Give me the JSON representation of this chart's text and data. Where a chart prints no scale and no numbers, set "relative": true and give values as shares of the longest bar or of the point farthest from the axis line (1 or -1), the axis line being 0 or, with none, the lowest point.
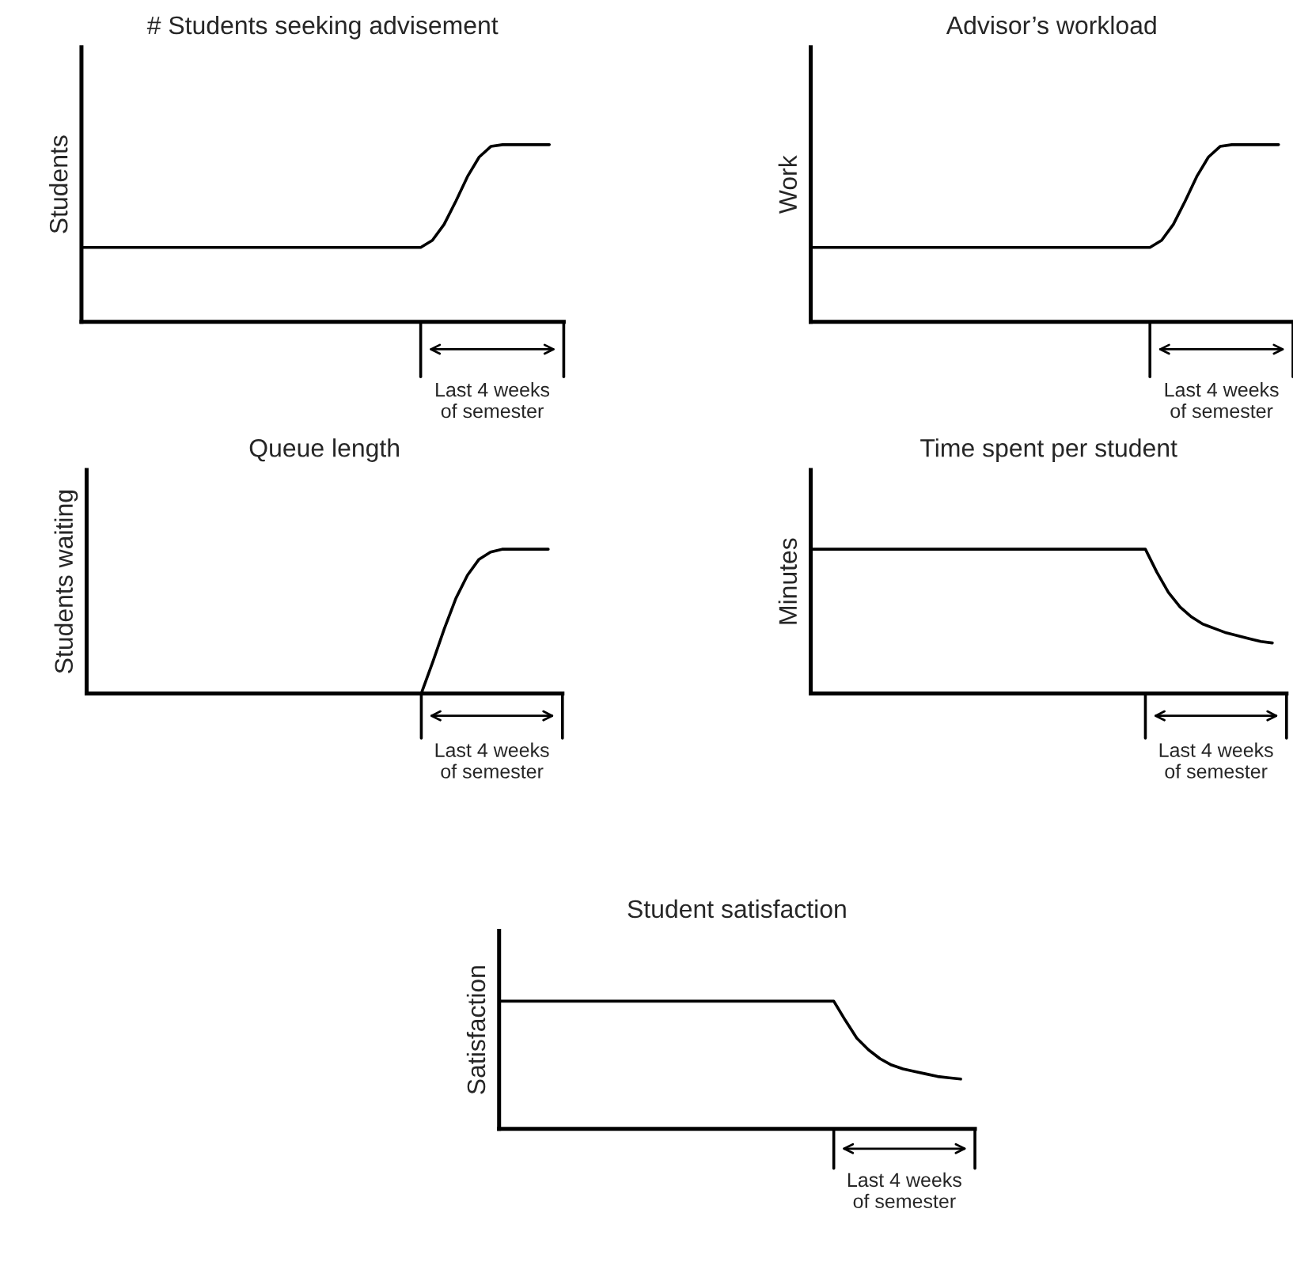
{
  "chart_data": [
    {
      "type": "line",
      "title": "# Students seeking advisement",
      "ylabel": "Students",
      "relative": true,
      "tick_labels": false,
      "annotations": [
        "Last 4 weeks\nof semester"
      ],
      "categories": [
        null,
        null,
        null,
        null,
        null,
        null,
        null,
        null,
        null,
        null,
        null,
        null,
        null,
        null,
        null,
        null,
        null,
        null,
        null,
        null,
        null,
        null,
        null,
        null,
        null,
        null,
        null,
        null,
        null,
        null,
        null,
        null,
        null,
        null,
        null,
        null,
        null,
        null,
        null,
        null,
        null
      ],
      "series": [
        {
          "color": "#000000",
          "values": [
            0.42,
            0.42,
            0.42,
            0.42,
            0.42,
            0.42,
            0.42,
            0.42,
            0.42,
            0.42,
            0.42,
            0.42,
            0.42,
            0.42,
            0.42,
            0.42,
            0.42,
            0.42,
            0.42,
            0.42,
            0.42,
            0.42,
            0.42,
            0.42,
            0.42,
            0.42,
            0.42,
            0.42,
            0.42,
            0.42,
            0.46,
            0.55,
            0.68,
            0.82,
            0.93,
            0.99,
            1,
            1,
            1,
            1,
            1
          ]
        }
      ]
    },
    {
      "type": "line",
      "title": "Advisor’s workload",
      "ylabel": "Work",
      "relative": true,
      "tick_labels": false,
      "annotations": [
        "Last 4 weeks\nof semester"
      ],
      "categories": [
        null,
        null,
        null,
        null,
        null,
        null,
        null,
        null,
        null,
        null,
        null,
        null,
        null,
        null,
        null,
        null,
        null,
        null,
        null,
        null,
        null,
        null,
        null,
        null,
        null,
        null,
        null,
        null,
        null,
        null,
        null,
        null,
        null,
        null,
        null,
        null,
        null,
        null,
        null,
        null,
        null
      ],
      "series": [
        {
          "color": "#000000",
          "values": [
            0.42,
            0.42,
            0.42,
            0.42,
            0.42,
            0.42,
            0.42,
            0.42,
            0.42,
            0.42,
            0.42,
            0.42,
            0.42,
            0.42,
            0.42,
            0.42,
            0.42,
            0.42,
            0.42,
            0.42,
            0.42,
            0.42,
            0.42,
            0.42,
            0.42,
            0.42,
            0.42,
            0.42,
            0.42,
            0.42,
            0.46,
            0.55,
            0.68,
            0.82,
            0.93,
            0.99,
            1,
            1,
            1,
            1,
            1
          ]
        }
      ]
    },
    {
      "type": "line",
      "title": "Queue length",
      "ylabel": "Students waiting",
      "relative": true,
      "tick_labels": false,
      "annotations": [
        "Last 4 weeks\nof semester"
      ],
      "categories": [
        null,
        null,
        null,
        null,
        null,
        null,
        null,
        null,
        null,
        null,
        null,
        null,
        null,
        null,
        null,
        null,
        null,
        null,
        null,
        null,
        null,
        null,
        null,
        null,
        null,
        null,
        null,
        null,
        null,
        null,
        null,
        null,
        null,
        null,
        null,
        null,
        null,
        null,
        null,
        null,
        null
      ],
      "series": [
        {
          "color": "#000000",
          "values": [
            0,
            0,
            0,
            0,
            0,
            0,
            0,
            0,
            0,
            0,
            0,
            0,
            0,
            0,
            0,
            0,
            0,
            0,
            0,
            0,
            0,
            0,
            0,
            0,
            0,
            0,
            0,
            0,
            0,
            0,
            0.22,
            0.45,
            0.66,
            0.82,
            0.93,
            0.98,
            1,
            1,
            1,
            1,
            1
          ]
        }
      ]
    },
    {
      "type": "line",
      "title": "Time spent per student",
      "ylabel": "Minutes",
      "relative": true,
      "tick_labels": false,
      "annotations": [
        "Last 4 weeks\nof semester"
      ],
      "categories": [
        null,
        null,
        null,
        null,
        null,
        null,
        null,
        null,
        null,
        null,
        null,
        null,
        null,
        null,
        null,
        null,
        null,
        null,
        null,
        null,
        null,
        null,
        null,
        null,
        null,
        null,
        null,
        null,
        null,
        null,
        null,
        null,
        null,
        null,
        null,
        null,
        null,
        null,
        null,
        null,
        null
      ],
      "series": [
        {
          "color": "#000000",
          "values": [
            1,
            1,
            1,
            1,
            1,
            1,
            1,
            1,
            1,
            1,
            1,
            1,
            1,
            1,
            1,
            1,
            1,
            1,
            1,
            1,
            1,
            1,
            1,
            1,
            1,
            1,
            1,
            1,
            1,
            1,
            0.84,
            0.7,
            0.6,
            0.53,
            0.48,
            0.45,
            0.42,
            0.4,
            0.38,
            0.36,
            0.35
          ]
        }
      ]
    },
    {
      "type": "line",
      "title": "Student satisfaction",
      "ylabel": "Satisfaction",
      "relative": true,
      "tick_labels": false,
      "annotations": [
        "Last 4 weeks\nof semester"
      ],
      "categories": [
        null,
        null,
        null,
        null,
        null,
        null,
        null,
        null,
        null,
        null,
        null,
        null,
        null,
        null,
        null,
        null,
        null,
        null,
        null,
        null,
        null,
        null,
        null,
        null,
        null,
        null,
        null,
        null,
        null,
        null,
        null,
        null,
        null,
        null,
        null,
        null,
        null,
        null,
        null,
        null,
        null
      ],
      "series": [
        {
          "color": "#000000",
          "values": [
            1,
            1,
            1,
            1,
            1,
            1,
            1,
            1,
            1,
            1,
            1,
            1,
            1,
            1,
            1,
            1,
            1,
            1,
            1,
            1,
            1,
            1,
            1,
            1,
            1,
            1,
            1,
            1,
            1,
            1,
            0.85,
            0.71,
            0.62,
            0.55,
            0.5,
            0.47,
            0.45,
            0.43,
            0.41,
            0.4,
            0.39
          ]
        }
      ]
    }
  ]
}
